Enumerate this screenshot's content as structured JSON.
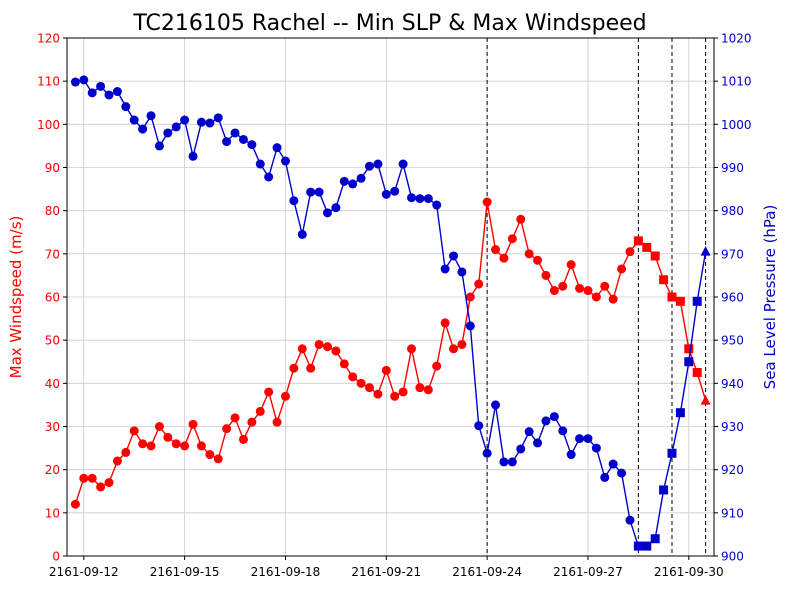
{
  "chart_data": {
    "type": "line",
    "title": "TC216105 Rachel -- Min SLP & Max Windspeed",
    "xlim": [
      "2161-09-11 12:00",
      "2161-09-30 18:00"
    ],
    "x_ticks": [
      "2161-09-12",
      "2161-09-15",
      "2161-09-18",
      "2161-09-21",
      "2161-09-24",
      "2161-09-27",
      "2161-09-30"
    ],
    "y_left": {
      "label": "Max Windspeed (m/s)",
      "color": "#ff0000",
      "ylim": [
        0,
        120
      ],
      "ticks": [
        "0",
        "10",
        "20",
        "30",
        "40",
        "50",
        "60",
        "70",
        "80",
        "90",
        "100",
        "110",
        "120"
      ]
    },
    "y_right": {
      "label": "Sea Level Pressure (hPa)",
      "color": "#0000cc",
      "ylim": [
        900,
        1020
      ],
      "ticks": [
        "900",
        "910",
        "920",
        "930",
        "940",
        "950",
        "960",
        "970",
        "980",
        "990",
        "1000",
        "1010",
        "1020"
      ]
    },
    "grid": true,
    "vlines": [
      "2161-09-24 00:00",
      "2161-09-28 12:00",
      "2161-09-29 12:00",
      "2161-09-30 12:00"
    ],
    "series": [
      {
        "axis": "left",
        "color": "#ff0000",
        "x": [
          "2161-09-11 18:00",
          "2161-09-12 00:00",
          "2161-09-12 06:00",
          "2161-09-12 12:00",
          "2161-09-12 18:00",
          "2161-09-13 00:00",
          "2161-09-13 06:00",
          "2161-09-13 12:00",
          "2161-09-13 18:00",
          "2161-09-14 00:00",
          "2161-09-14 06:00",
          "2161-09-14 12:00",
          "2161-09-14 18:00",
          "2161-09-15 00:00",
          "2161-09-15 06:00",
          "2161-09-15 12:00",
          "2161-09-15 18:00",
          "2161-09-16 00:00",
          "2161-09-16 06:00",
          "2161-09-16 12:00",
          "2161-09-16 18:00",
          "2161-09-17 00:00",
          "2161-09-17 06:00",
          "2161-09-17 12:00",
          "2161-09-17 18:00",
          "2161-09-18 00:00",
          "2161-09-18 06:00",
          "2161-09-18 12:00",
          "2161-09-18 18:00",
          "2161-09-19 00:00",
          "2161-09-19 06:00",
          "2161-09-19 12:00",
          "2161-09-19 18:00",
          "2161-09-20 00:00",
          "2161-09-20 06:00",
          "2161-09-20 12:00",
          "2161-09-20 18:00",
          "2161-09-21 00:00",
          "2161-09-21 06:00",
          "2161-09-21 12:00",
          "2161-09-21 18:00",
          "2161-09-22 00:00",
          "2161-09-22 06:00",
          "2161-09-22 12:00",
          "2161-09-22 18:00",
          "2161-09-23 00:00",
          "2161-09-23 06:00",
          "2161-09-23 12:00",
          "2161-09-23 18:00",
          "2161-09-24 00:00",
          "2161-09-24 06:00",
          "2161-09-24 12:00",
          "2161-09-24 18:00",
          "2161-09-25 00:00",
          "2161-09-25 06:00",
          "2161-09-25 12:00",
          "2161-09-25 18:00",
          "2161-09-26 00:00",
          "2161-09-26 06:00",
          "2161-09-26 12:00",
          "2161-09-26 18:00",
          "2161-09-27 00:00",
          "2161-09-27 06:00",
          "2161-09-27 12:00",
          "2161-09-27 18:00",
          "2161-09-28 00:00",
          "2161-09-28 06:00",
          "2161-09-28 12:00",
          "2161-09-28 18:00",
          "2161-09-29 00:00",
          "2161-09-29 06:00",
          "2161-09-29 12:00",
          "2161-09-29 18:00",
          "2161-09-30 00:00",
          "2161-09-30 06:00",
          "2161-09-30 12:00"
        ],
        "values": [
          12,
          18,
          18,
          16,
          17,
          22,
          24,
          29,
          26,
          25.5,
          30,
          27.5,
          26,
          25.5,
          30.5,
          25.5,
          23.5,
          22.5,
          29.5,
          32,
          27,
          31,
          33.5,
          38,
          31,
          37,
          43.5,
          48,
          43.5,
          49,
          48.5,
          47.5,
          44.5,
          41.5,
          40,
          39,
          37.5,
          43,
          37,
          38,
          48,
          39,
          38.5,
          44,
          54,
          48,
          49,
          60,
          63,
          82,
          71,
          69,
          73.5,
          78,
          70,
          68.5,
          65,
          61.5,
          62.5,
          67.5,
          62,
          61.5,
          60,
          62.5,
          59.5,
          66.5,
          70.5,
          73,
          71.5,
          69.5,
          64,
          60,
          59,
          48,
          42.5,
          36
        ],
        "markers": [
          "o",
          "o",
          "o",
          "o",
          "o",
          "o",
          "o",
          "o",
          "o",
          "o",
          "o",
          "o",
          "o",
          "o",
          "o",
          "o",
          "o",
          "o",
          "o",
          "o",
          "o",
          "o",
          "o",
          "o",
          "o",
          "o",
          "o",
          "o",
          "o",
          "o",
          "o",
          "o",
          "o",
          "o",
          "o",
          "o",
          "o",
          "o",
          "o",
          "o",
          "o",
          "o",
          "o",
          "o",
          "o",
          "o",
          "o",
          "o",
          "o",
          "o",
          "o",
          "o",
          "o",
          "o",
          "o",
          "o",
          "o",
          "o",
          "o",
          "o",
          "o",
          "o",
          "o",
          "o",
          "o",
          "o",
          "o",
          "s",
          "s",
          "s",
          "s",
          "s",
          "s",
          "s",
          "s",
          "^"
        ]
      },
      {
        "axis": "right",
        "color": "#0000cc",
        "x": [
          "2161-09-11 18:00",
          "2161-09-12 00:00",
          "2161-09-12 06:00",
          "2161-09-12 12:00",
          "2161-09-12 18:00",
          "2161-09-13 00:00",
          "2161-09-13 06:00",
          "2161-09-13 12:00",
          "2161-09-13 18:00",
          "2161-09-14 00:00",
          "2161-09-14 06:00",
          "2161-09-14 12:00",
          "2161-09-14 18:00",
          "2161-09-15 00:00",
          "2161-09-15 06:00",
          "2161-09-15 12:00",
          "2161-09-15 18:00",
          "2161-09-16 00:00",
          "2161-09-16 06:00",
          "2161-09-16 12:00",
          "2161-09-16 18:00",
          "2161-09-17 00:00",
          "2161-09-17 06:00",
          "2161-09-17 12:00",
          "2161-09-17 18:00",
          "2161-09-18 00:00",
          "2161-09-18 06:00",
          "2161-09-18 12:00",
          "2161-09-18 18:00",
          "2161-09-19 00:00",
          "2161-09-19 06:00",
          "2161-09-19 12:00",
          "2161-09-19 18:00",
          "2161-09-20 00:00",
          "2161-09-20 06:00",
          "2161-09-20 12:00",
          "2161-09-20 18:00",
          "2161-09-21 00:00",
          "2161-09-21 06:00",
          "2161-09-21 12:00",
          "2161-09-21 18:00",
          "2161-09-22 00:00",
          "2161-09-22 06:00",
          "2161-09-22 12:00",
          "2161-09-22 18:00",
          "2161-09-23 00:00",
          "2161-09-23 06:00",
          "2161-09-23 12:00",
          "2161-09-23 18:00",
          "2161-09-24 00:00",
          "2161-09-24 06:00",
          "2161-09-24 12:00",
          "2161-09-24 18:00",
          "2161-09-25 00:00",
          "2161-09-25 06:00",
          "2161-09-25 12:00",
          "2161-09-25 18:00",
          "2161-09-26 00:00",
          "2161-09-26 06:00",
          "2161-09-26 12:00",
          "2161-09-26 18:00",
          "2161-09-27 00:00",
          "2161-09-27 06:00",
          "2161-09-27 12:00",
          "2161-09-27 18:00",
          "2161-09-28 00:00",
          "2161-09-28 06:00",
          "2161-09-28 12:00",
          "2161-09-28 18:00",
          "2161-09-29 00:00",
          "2161-09-29 06:00",
          "2161-09-29 12:00",
          "2161-09-29 18:00",
          "2161-09-30 00:00",
          "2161-09-30 06:00",
          "2161-09-30 12:00"
        ],
        "values": [
          1009.8,
          1010.3,
          1007.3,
          1008.8,
          1006.8,
          1007.6,
          1004.1,
          1001,
          998.9,
          1002,
          995,
          998,
          999.4,
          1001,
          992.6,
          1000.5,
          1000.3,
          1001.5,
          996,
          998,
          996.5,
          995.3,
          990.8,
          987.8,
          994.6,
          991.5,
          982.3,
          974.5,
          984.3,
          984.3,
          979.5,
          980.7,
          986.8,
          986.2,
          987.5,
          990.3,
          990.8,
          983.8,
          984.5,
          990.8,
          983,
          982.8,
          982.8,
          981.3,
          966.5,
          969.5,
          965.8,
          953.3,
          930.2,
          923.8,
          935,
          921.8,
          921.8,
          924.8,
          928.8,
          926.2,
          931.3,
          932.3,
          929,
          923.5,
          927.2,
          927.2,
          925,
          918.2,
          921.3,
          919.2,
          908.3,
          902.3,
          902.3,
          904,
          915.3,
          923.8,
          933.2,
          945,
          959,
          970.5
        ],
        "markers": [
          "o",
          "o",
          "o",
          "o",
          "o",
          "o",
          "o",
          "o",
          "o",
          "o",
          "o",
          "o",
          "o",
          "o",
          "o",
          "o",
          "o",
          "o",
          "o",
          "o",
          "o",
          "o",
          "o",
          "o",
          "o",
          "o",
          "o",
          "o",
          "o",
          "o",
          "o",
          "o",
          "o",
          "o",
          "o",
          "o",
          "o",
          "o",
          "o",
          "o",
          "o",
          "o",
          "o",
          "o",
          "o",
          "o",
          "o",
          "o",
          "o",
          "o",
          "o",
          "o",
          "o",
          "o",
          "o",
          "o",
          "o",
          "o",
          "o",
          "o",
          "o",
          "o",
          "o",
          "o",
          "o",
          "o",
          "o",
          "s",
          "s",
          "s",
          "s",
          "s",
          "s",
          "s",
          "s",
          "^"
        ]
      }
    ]
  }
}
